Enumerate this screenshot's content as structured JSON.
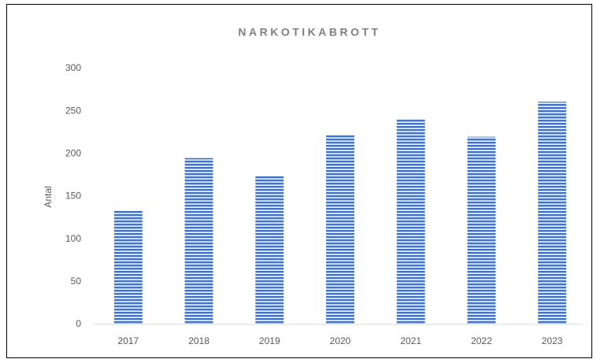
{
  "chart_data": {
    "type": "bar",
    "title": "NARKOTIKABROTT",
    "y_label": "Antal",
    "categories": [
      "2017",
      "2018",
      "2019",
      "2020",
      "2021",
      "2022",
      "2023"
    ],
    "values": [
      133,
      195,
      174,
      222,
      240,
      220,
      261
    ],
    "color": "#4472c4",
    "ylim": [
      0,
      300
    ],
    "yticks": [
      0,
      50,
      100,
      150,
      200,
      250,
      300
    ],
    "grid": false
  }
}
